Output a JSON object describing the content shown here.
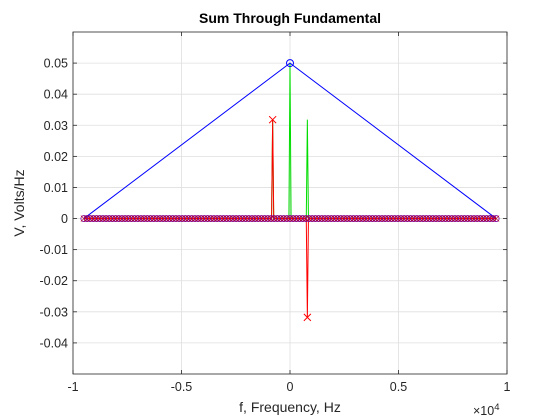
{
  "chart_data": {
    "type": "line",
    "title": "Sum Through Fundamental",
    "xlabel": "f, Frequency, Hz",
    "ylabel": "V, Volts/Hz",
    "x_exponent_label": "×10",
    "x_exponent_power": "4",
    "x_multiplier": 10000,
    "xlim": [
      -1,
      1
    ],
    "ylim": [
      -0.05,
      0.06
    ],
    "xticks": [
      -1,
      -0.5,
      0,
      0.5,
      1
    ],
    "xtick_labels": [
      "-1",
      "-0.5",
      "0",
      "0.5",
      "1"
    ],
    "yticks": [
      -0.04,
      -0.03,
      -0.02,
      -0.01,
      0,
      0.01,
      0.02,
      0.03,
      0.04,
      0.05
    ],
    "ytick_labels": [
      "-0.04",
      "-0.03",
      "-0.02",
      "-0.01",
      "0",
      "0.01",
      "0.02",
      "0.03",
      "0.04",
      "0.05"
    ],
    "grid": true,
    "marker_range": [
      -0.95,
      0.95
    ],
    "series": [
      {
        "color": "#00dd00",
        "marker": "none",
        "points": [
          [
            -0.95,
            0
          ],
          [
            -0.085,
            0
          ],
          [
            -0.08,
            0.0318
          ],
          [
            -0.075,
            0
          ],
          [
            -0.005,
            0
          ],
          [
            0,
            0.05
          ],
          [
            0.005,
            0
          ],
          [
            0.075,
            0
          ],
          [
            0.08,
            0.0318
          ],
          [
            0.085,
            0
          ],
          [
            0.95,
            0
          ]
        ]
      },
      {
        "color": "#ff0000",
        "marker": "x",
        "points": [
          [
            -0.95,
            0
          ],
          [
            -0.085,
            0
          ],
          [
            -0.08,
            0.0318
          ],
          [
            -0.075,
            0
          ],
          [
            0.075,
            0
          ],
          [
            0.08,
            -0.0318
          ],
          [
            0.085,
            0
          ],
          [
            0.95,
            0
          ]
        ]
      },
      {
        "color": "#0000ff",
        "marker": "o",
        "points": [
          [
            -0.95,
            0
          ],
          [
            0,
            0.05
          ],
          [
            0.95,
            0
          ]
        ]
      }
    ],
    "colors": {
      "axes": "#262626",
      "grid": "#dfdfdf",
      "baseline_markers": "#7a00a0"
    }
  }
}
